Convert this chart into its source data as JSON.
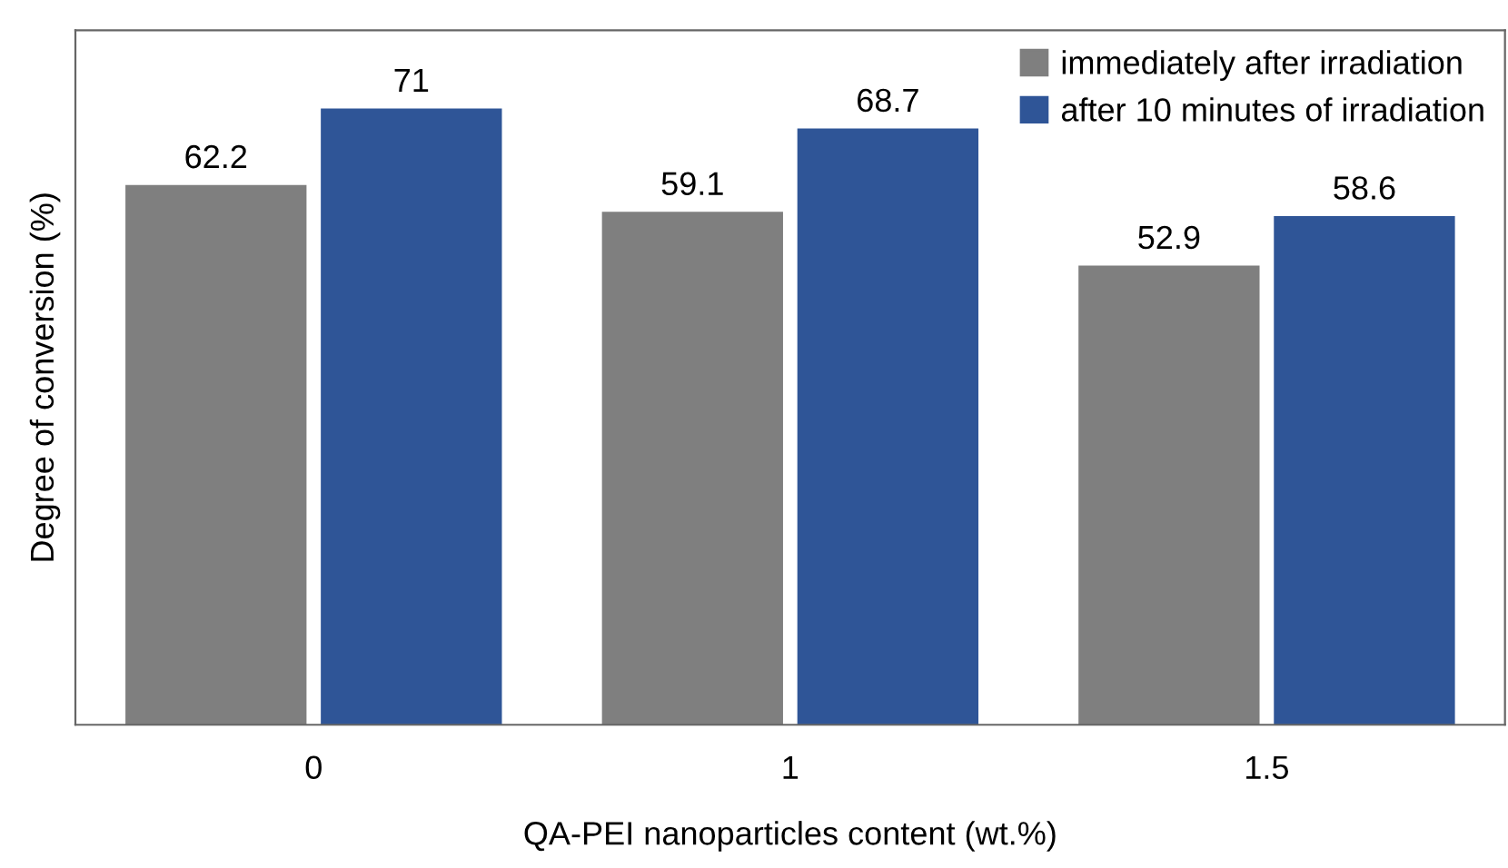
{
  "chart_data": {
    "type": "bar",
    "xlabel": "QA-PEI nanoparticles content (wt.%)",
    "ylabel": "Degree of conversion (%)",
    "categories": [
      "0",
      "1",
      "1.5"
    ],
    "series": [
      {
        "name": "immediately after irradiation",
        "color": "#7f7f7f",
        "values": [
          62.2,
          59.1,
          52.9
        ]
      },
      {
        "name": "after 10 minutes of irradiation",
        "color": "#2f5597",
        "values": [
          71,
          68.7,
          58.6
        ]
      }
    ],
    "ylim": [
      0,
      80
    ],
    "data_labels": true,
    "legend": "top right",
    "grid": false,
    "tick_labels": "x"
  }
}
